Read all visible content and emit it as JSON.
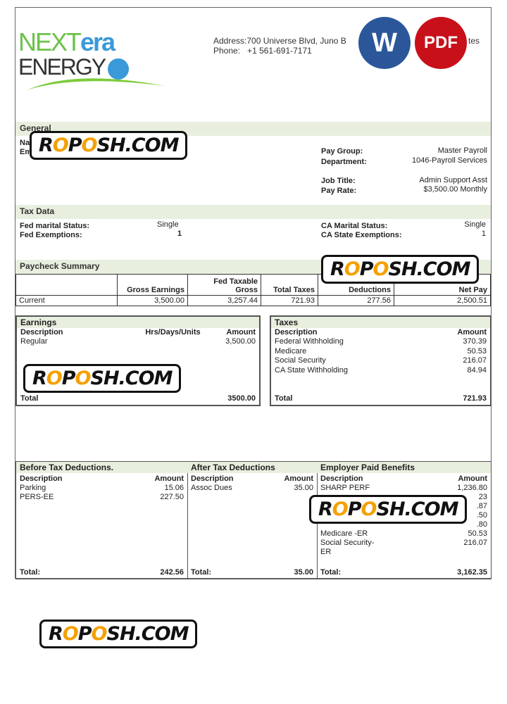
{
  "company": {
    "logo_text_1": "NEXT",
    "logo_text_2": "era",
    "logo_text_3": "ENERGY",
    "address_label": "Address:",
    "address": "700 Universe Blvd, Juno B",
    "address_tail": "tes",
    "phone_label": "Phone:",
    "phone": "+1 561-691-7171"
  },
  "badges": {
    "word": "W",
    "pdf": "PDF"
  },
  "general": {
    "title": "General",
    "name_label": "Na",
    "emp_label": "Em",
    "pay_group_label": "Pay Group:",
    "pay_group": "Master Payroll",
    "department_label": "Department:",
    "department": "1046-Payroll Services",
    "job_title_label": "Job Title:",
    "job_title": "Admin Support Asst",
    "pay_rate_label": "Pay Rate:",
    "pay_rate": "$3,500.00 Monthly"
  },
  "tax_data": {
    "title": "Tax Data",
    "fed_marital_label": "Fed marital Status:",
    "fed_marital": "Single",
    "fed_exempt_label": "Fed Exemptions:",
    "fed_exempt": "1",
    "ca_marital_label": "CA Marital Status:",
    "ca_marital": "Single",
    "ca_exempt_label": "CA State Exemptions:",
    "ca_exempt": "1"
  },
  "summary": {
    "title": "Paycheck Summary",
    "headers": [
      "",
      "Gross Earnings",
      "Fed Taxable Gross",
      "Total Taxes",
      "Deductions",
      "Net Pay"
    ],
    "row": [
      "Current",
      "3,500.00",
      "3,257.44",
      "721.93",
      "277.56",
      "2,500.51"
    ]
  },
  "earnings": {
    "title": "Earnings",
    "h_desc": "Description",
    "h_units": "Hrs/Days/Units",
    "h_amount": "Amount",
    "items": [
      {
        "desc": "Regular",
        "amount": "3,500.00"
      }
    ],
    "total_label": "Total",
    "total": "3500.00"
  },
  "taxes": {
    "title": "Taxes",
    "h_desc": "Description",
    "h_amount": "Amount",
    "items": [
      {
        "desc": "Federal Withholding",
        "amount": "370.39"
      },
      {
        "desc": "Medicare",
        "amount": "50.53"
      },
      {
        "desc": "Social Security",
        "amount": "216.07"
      },
      {
        "desc": "CA State Withholding",
        "amount": "84.94"
      }
    ],
    "total_label": "Total",
    "total": "721.93"
  },
  "before_tax": {
    "title": "Before Tax Deductions.",
    "h_desc": "Description",
    "h_amount": "Amount",
    "items": [
      {
        "desc": "Parking",
        "amount": "15.06"
      },
      {
        "desc": "PERS-EE",
        "amount": "227.50"
      }
    ],
    "total_label": "Total:",
    "total": "242.56"
  },
  "after_tax": {
    "title": "After Tax Deductions",
    "h_desc": "Description",
    "h_amount": "Amount",
    "items": [
      {
        "desc": "Assoc Dues",
        "amount": "35.00"
      }
    ],
    "total_label": "Total:",
    "total": "35.00"
  },
  "employer": {
    "title": "Employer Paid Benefits",
    "h_desc": "Description",
    "h_amount": "Amount",
    "items": [
      {
        "desc": "SHARP PERF",
        "amount": "1,236.80"
      },
      {
        "desc": "",
        "amount": "23"
      },
      {
        "desc": "",
        "amount": ".87"
      },
      {
        "desc": "",
        "amount": ".50"
      },
      {
        "desc": "",
        "amount": ".80"
      },
      {
        "desc": "Medicare -ER",
        "amount": "50.53"
      },
      {
        "desc": "Social Security-ER",
        "amount": "216.07"
      }
    ],
    "total_label": "Total:",
    "total": "3,162.35"
  },
  "watermark": {
    "text_parts": [
      "R",
      "O",
      "P",
      "O",
      "SH.COM"
    ]
  },
  "colors": {
    "band": "#e8efdf",
    "logo_green": "#6cc24a",
    "logo_blue": "#3a9ad9",
    "word_blue": "#2b579a",
    "pdf_red": "#c8101a"
  }
}
